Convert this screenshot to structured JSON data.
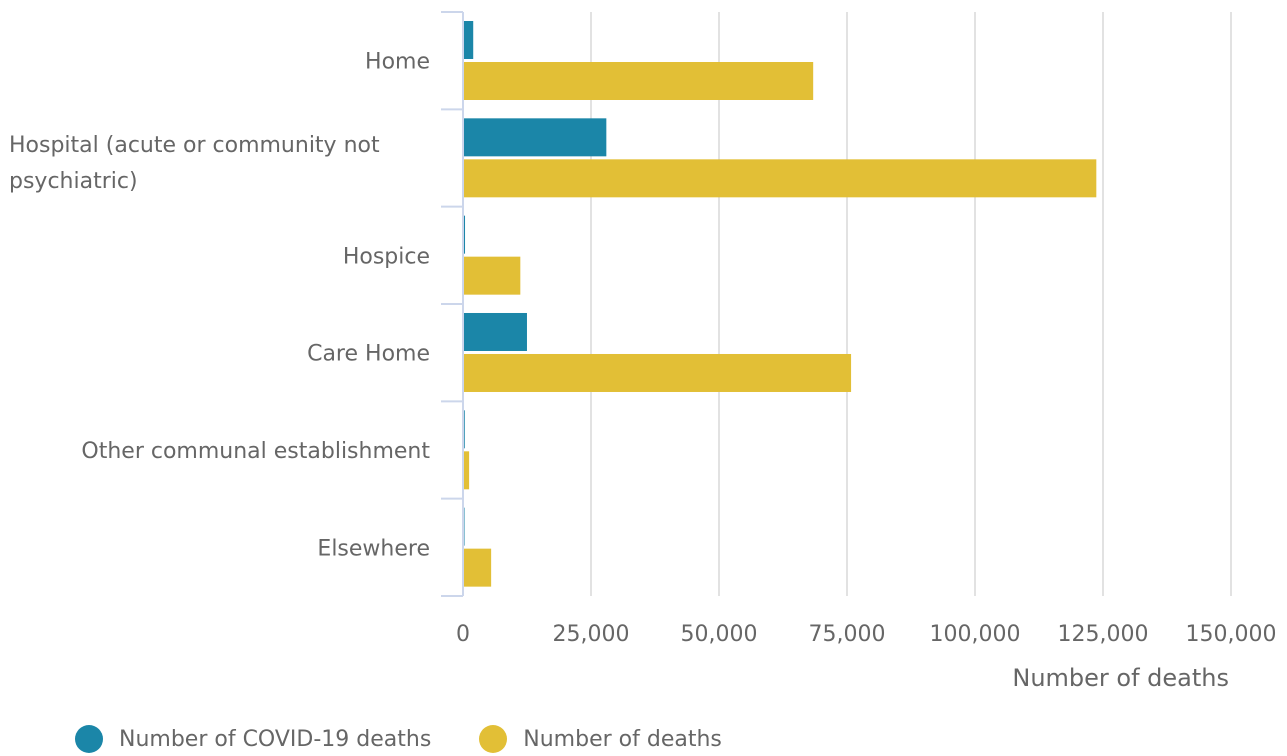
{
  "chart_data": {
    "type": "bar",
    "orientation": "horizontal",
    "categories": [
      [
        "Home"
      ],
      [
        "Hospital (acute or community not",
        "psychiatric)"
      ],
      [
        "Hospice"
      ],
      [
        "Care Home"
      ],
      [
        "Other communal establishment"
      ],
      [
        "Elsewhere"
      ]
    ],
    "series": [
      {
        "name": "Number of COVID-19 deaths",
        "color": "#1b86a8",
        "values": [
          1800,
          27800,
          200,
          12300,
          150,
          100
        ]
      },
      {
        "name": "Number of deaths",
        "color": "#e2bf36",
        "values": [
          68200,
          123500,
          11000,
          75600,
          1000,
          5300
        ]
      }
    ],
    "xlabel": "Number of deaths",
    "ylabel": "",
    "xlim": [
      0,
      150000
    ],
    "xticks": [
      0,
      25000,
      50000,
      75000,
      100000,
      125000,
      150000
    ],
    "xtick_labels": [
      "0",
      "25,000",
      "50,000",
      "75,000",
      "100,000",
      "125,000",
      "150,000"
    ],
    "grid": true,
    "legend_position": "bottom-left"
  }
}
